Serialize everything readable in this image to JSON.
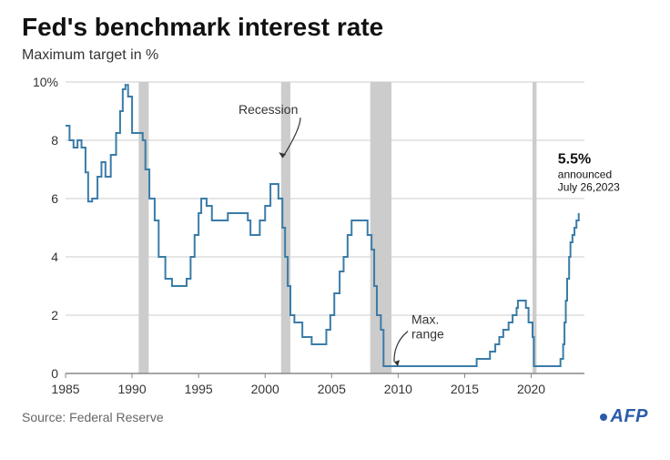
{
  "title": "Fed's benchmark interest rate",
  "subtitle": "Maximum target in %",
  "source": "Source: Federal Reserve",
  "logo_text": "AFP",
  "chart": {
    "type": "step-line",
    "x_range": [
      1985,
      2024
    ],
    "y_range": [
      0,
      10
    ],
    "x_ticks": [
      1985,
      1990,
      1995,
      2000,
      2005,
      2010,
      2015,
      2020
    ],
    "y_ticks": [
      0,
      2,
      4,
      6,
      8,
      10
    ],
    "y_tick_suffix_top": "%",
    "grid_color": "#cccccc",
    "axis_color": "#888888",
    "tick_font_size": 14,
    "tick_color": "#333333",
    "line_color": "#3a7ca8",
    "line_width": 2,
    "background_color": "#ffffff",
    "recession_fill": "#cccccc",
    "recessions": [
      {
        "start": 1990.5,
        "end": 1991.25
      },
      {
        "start": 2001.2,
        "end": 2001.9
      },
      {
        "start": 2007.9,
        "end": 2009.5
      },
      {
        "start": 2020.1,
        "end": 2020.4
      }
    ],
    "series": [
      [
        1985.0,
        8.5
      ],
      [
        1985.3,
        8.0
      ],
      [
        1985.6,
        7.75
      ],
      [
        1985.9,
        8.0
      ],
      [
        1986.2,
        7.75
      ],
      [
        1986.5,
        6.9
      ],
      [
        1986.7,
        5.9
      ],
      [
        1987.0,
        6.0
      ],
      [
        1987.4,
        6.75
      ],
      [
        1987.7,
        7.25
      ],
      [
        1988.0,
        6.75
      ],
      [
        1988.4,
        7.5
      ],
      [
        1988.8,
        8.25
      ],
      [
        1989.1,
        9.0
      ],
      [
        1989.3,
        9.75
      ],
      [
        1989.5,
        9.9
      ],
      [
        1989.7,
        9.5
      ],
      [
        1990.0,
        8.25
      ],
      [
        1990.4,
        8.25
      ],
      [
        1990.8,
        8.0
      ],
      [
        1991.0,
        7.0
      ],
      [
        1991.3,
        6.0
      ],
      [
        1991.7,
        5.25
      ],
      [
        1992.0,
        4.0
      ],
      [
        1992.5,
        3.25
      ],
      [
        1993.0,
        3.0
      ],
      [
        1993.7,
        3.0
      ],
      [
        1994.1,
        3.25
      ],
      [
        1994.4,
        4.0
      ],
      [
        1994.7,
        4.75
      ],
      [
        1995.0,
        5.5
      ],
      [
        1995.2,
        6.0
      ],
      [
        1995.6,
        5.75
      ],
      [
        1996.0,
        5.25
      ],
      [
        1996.7,
        5.25
      ],
      [
        1997.2,
        5.5
      ],
      [
        1998.0,
        5.5
      ],
      [
        1998.7,
        5.25
      ],
      [
        1998.9,
        4.75
      ],
      [
        1999.2,
        4.75
      ],
      [
        1999.6,
        5.25
      ],
      [
        2000.0,
        5.75
      ],
      [
        2000.4,
        6.5
      ],
      [
        2000.8,
        6.5
      ],
      [
        2001.0,
        6.0
      ],
      [
        2001.3,
        5.0
      ],
      [
        2001.5,
        4.0
      ],
      [
        2001.7,
        3.0
      ],
      [
        2001.9,
        2.0
      ],
      [
        2002.2,
        1.75
      ],
      [
        2002.8,
        1.25
      ],
      [
        2003.5,
        1.0
      ],
      [
        2004.3,
        1.0
      ],
      [
        2004.6,
        1.5
      ],
      [
        2004.9,
        2.0
      ],
      [
        2005.2,
        2.75
      ],
      [
        2005.6,
        3.5
      ],
      [
        2005.9,
        4.0
      ],
      [
        2006.2,
        4.75
      ],
      [
        2006.5,
        5.25
      ],
      [
        2007.4,
        5.25
      ],
      [
        2007.7,
        4.75
      ],
      [
        2008.0,
        4.25
      ],
      [
        2008.2,
        3.0
      ],
      [
        2008.4,
        2.0
      ],
      [
        2008.7,
        1.5
      ],
      [
        2008.9,
        0.25
      ],
      [
        2010.0,
        0.25
      ],
      [
        2014.0,
        0.25
      ],
      [
        2015.9,
        0.5
      ],
      [
        2016.9,
        0.75
      ],
      [
        2017.3,
        1.0
      ],
      [
        2017.6,
        1.25
      ],
      [
        2017.9,
        1.5
      ],
      [
        2018.3,
        1.75
      ],
      [
        2018.6,
        2.0
      ],
      [
        2018.9,
        2.25
      ],
      [
        2019.0,
        2.5
      ],
      [
        2019.6,
        2.25
      ],
      [
        2019.8,
        1.75
      ],
      [
        2020.1,
        1.25
      ],
      [
        2020.2,
        0.25
      ],
      [
        2021.5,
        0.25
      ],
      [
        2022.2,
        0.5
      ],
      [
        2022.4,
        1.0
      ],
      [
        2022.5,
        1.75
      ],
      [
        2022.6,
        2.5
      ],
      [
        2022.7,
        3.25
      ],
      [
        2022.85,
        4.0
      ],
      [
        2022.95,
        4.5
      ],
      [
        2023.1,
        4.75
      ],
      [
        2023.25,
        5.0
      ],
      [
        2023.4,
        5.25
      ],
      [
        2023.57,
        5.5
      ]
    ],
    "annotations": {
      "recession_label": {
        "text": "Recession",
        "font_size": 14,
        "color": "#333333",
        "pos_year": 1998.0,
        "pos_rate": 8.9,
        "arrow_to_year": 2001.3,
        "arrow_to_rate": 7.4
      },
      "max_range_label": {
        "text": "Max.\nrange",
        "font_size": 14,
        "color": "#333333",
        "pos_year": 2011.0,
        "pos_rate": 1.7,
        "arrow_to_year": 2009.7,
        "arrow_to_rate": 0.4
      },
      "final_value": {
        "value_text": "5.5%",
        "sub_text": "announced\nJuly 26,2023",
        "value_font_size": 16,
        "value_font_weight": 700,
        "sub_font_size": 12,
        "color": "#111111",
        "pos_year": 2022.0,
        "pos_rate": 7.2
      }
    }
  }
}
